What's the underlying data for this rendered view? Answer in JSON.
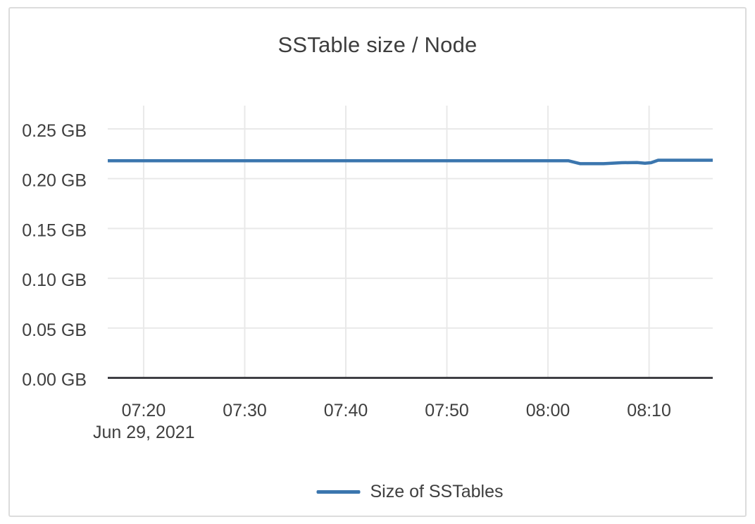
{
  "window": {
    "background": "#ffffff",
    "border_color": "#dcdcdc"
  },
  "chart_data": {
    "type": "line",
    "title": "SSTable size / Node",
    "xlabel": "",
    "ylabel": "",
    "x_axis": {
      "date_label": "Jun 29, 2021",
      "ticks": [
        "07:20",
        "07:30",
        "07:40",
        "07:50",
        "08:00",
        "08:10"
      ],
      "tick_minutes": [
        440,
        450,
        460,
        470,
        480,
        490
      ],
      "range_minutes": [
        436.45,
        496.3
      ]
    },
    "y_axis": {
      "unit": "GB",
      "ticks": [
        "0.25 GB",
        "0.20 GB",
        "0.15 GB",
        "0.10 GB",
        "0.05 GB",
        "0.00 GB"
      ],
      "tick_values": [
        0.25,
        0.2,
        0.15,
        0.1,
        0.05,
        0.0
      ],
      "range": [
        0,
        0.2733
      ]
    },
    "grid": true,
    "legend": {
      "position": "bottom",
      "entries": [
        {
          "label": "Size of SSTables",
          "color": "#3b76ae"
        }
      ]
    },
    "series": [
      {
        "name": "Size of SSTables",
        "color": "#3b76ae",
        "points": [
          {
            "t": "07:16",
            "t_min": 436.45,
            "gb": 0.218
          },
          {
            "t": "08:02",
            "t_min": 482.0,
            "gb": 0.218
          },
          {
            "t": "08:03",
            "t_min": 483.2,
            "gb": 0.215
          },
          {
            "t": "08:05",
            "t_min": 485.5,
            "gb": 0.215
          },
          {
            "t": "08:07",
            "t_min": 487.3,
            "gb": 0.216
          },
          {
            "t": "08:09",
            "t_min": 488.8,
            "gb": 0.2162
          },
          {
            "t": "08:10",
            "t_min": 489.6,
            "gb": 0.2155
          },
          {
            "t": "08:10",
            "t_min": 490.2,
            "gb": 0.216
          },
          {
            "t": "08:11",
            "t_min": 490.9,
            "gb": 0.2185
          },
          {
            "t": "08:16",
            "t_min": 496.3,
            "gb": 0.2185
          }
        ]
      }
    ],
    "colors": {
      "gridline": "#e9e9e9",
      "axis_line": "#404045",
      "tick_text": "#3f3f3f",
      "title_text": "#3d3d3d"
    }
  }
}
